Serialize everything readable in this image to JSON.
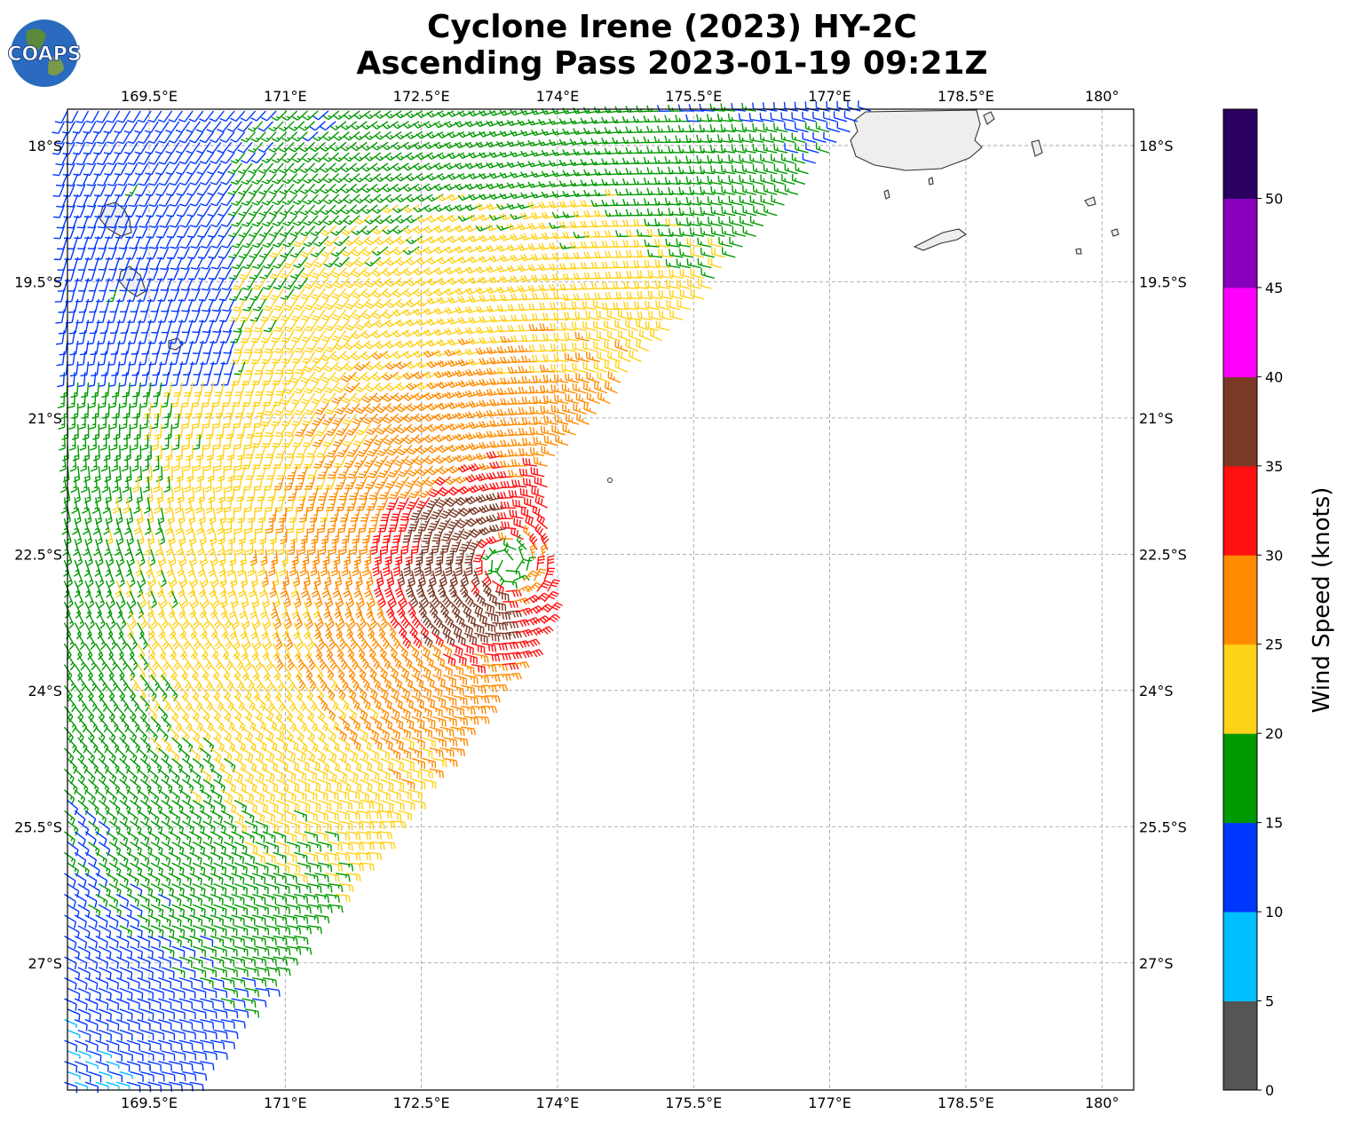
{
  "logo": {
    "text": "COAPS"
  },
  "title": {
    "line1": "Cyclone Irene (2023) HY-2C",
    "line2": "Ascending Pass 2023-01-19 09:21Z"
  },
  "colorbar": {
    "label": "Wind Speed (knots)",
    "bins": [
      {
        "min": 0,
        "max": 5,
        "color": "#555555"
      },
      {
        "min": 5,
        "max": 10,
        "color": "#00bfff"
      },
      {
        "min": 10,
        "max": 15,
        "color": "#0037ff"
      },
      {
        "min": 15,
        "max": 20,
        "color": "#009900"
      },
      {
        "min": 20,
        "max": 25,
        "color": "#ffd21a"
      },
      {
        "min": 25,
        "max": 30,
        "color": "#ff8c00"
      },
      {
        "min": 30,
        "max": 35,
        "color": "#ff1010"
      },
      {
        "min": 35,
        "max": 40,
        "color": "#7b3a26"
      },
      {
        "min": 40,
        "max": 45,
        "color": "#ff00ff"
      },
      {
        "min": 45,
        "max": 50,
        "color": "#8800bb"
      },
      {
        "min": 50,
        "max": 55,
        "color": "#2a0060"
      }
    ],
    "tick_labels": [
      "0",
      "5",
      "10",
      "15",
      "20",
      "25",
      "30",
      "35",
      "40",
      "45",
      "50"
    ]
  },
  "map": {
    "lon_range": [
      168.6,
      180.35
    ],
    "lat_range": [
      -28.4,
      -17.6
    ],
    "lon_ticks": [
      {
        "value": 169.5,
        "label": "169.5°E"
      },
      {
        "value": 171.0,
        "label": "171°E"
      },
      {
        "value": 172.5,
        "label": "172.5°E"
      },
      {
        "value": 174.0,
        "label": "174°E"
      },
      {
        "value": 175.5,
        "label": "175.5°E"
      },
      {
        "value": 177.0,
        "label": "177°E"
      },
      {
        "value": 178.5,
        "label": "178.5°E"
      },
      {
        "value": 180.0,
        "label": "180°"
      }
    ],
    "lat_ticks": [
      {
        "value": -18.0,
        "label": "18°S"
      },
      {
        "value": -19.5,
        "label": "19.5°S"
      },
      {
        "value": -21.0,
        "label": "21°S"
      },
      {
        "value": -22.5,
        "label": "22.5°S"
      },
      {
        "value": -24.0,
        "label": "24°S"
      },
      {
        "value": -25.5,
        "label": "25.5°S"
      },
      {
        "value": -27.0,
        "label": "27°S"
      }
    ],
    "grid": true,
    "cyclone_center": {
      "lon": 173.45,
      "lat": -22.6
    }
  }
}
